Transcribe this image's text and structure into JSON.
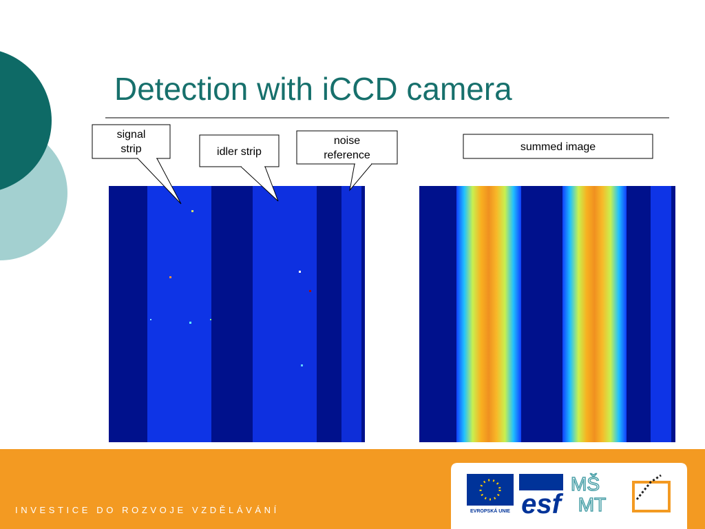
{
  "header": {
    "title": "Detection with iCCD camera"
  },
  "callouts": [
    {
      "label": "signal strip"
    },
    {
      "label": "idler strip"
    },
    {
      "label": "noise reference"
    },
    {
      "label": "summed image"
    }
  ],
  "footer": {
    "text": "INVESTICE DO ROZVOJE VZDĚLÁVÁNÍ"
  },
  "logos": {
    "eu": "EVROPSKÁ UNIE",
    "esf": "esf",
    "msmt_top": "MŠ",
    "msmt_bottom": "MT"
  }
}
